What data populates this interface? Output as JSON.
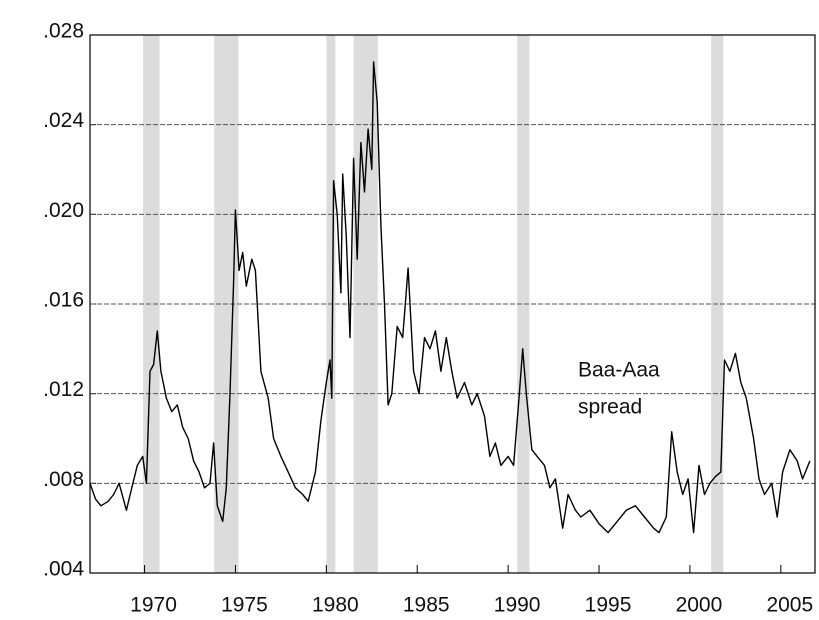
{
  "chart_data": {
    "type": "line",
    "annotation": [
      "Baa-Aaa",
      "spread"
    ],
    "color": "#000000",
    "shade_color": "#dcdcdc",
    "shaded_regions": [
      [
        1969.92,
        1970.83
      ],
      [
        1973.83,
        1975.17
      ],
      [
        1980.0,
        1980.5
      ],
      [
        1981.5,
        1982.83
      ],
      [
        1990.5,
        1991.17
      ],
      [
        2001.17,
        2001.83
      ]
    ],
    "x": [
      1967.0,
      1967.3,
      1967.6,
      1968.0,
      1968.3,
      1968.6,
      1969.0,
      1969.3,
      1969.6,
      1969.9,
      1970.1,
      1970.3,
      1970.5,
      1970.7,
      1970.9,
      1971.2,
      1971.5,
      1971.8,
      1972.1,
      1972.4,
      1972.7,
      1973.0,
      1973.3,
      1973.6,
      1973.8,
      1974.0,
      1974.3,
      1974.5,
      1974.7,
      1974.9,
      1975.0,
      1975.2,
      1975.4,
      1975.6,
      1975.9,
      1976.1,
      1976.4,
      1976.8,
      1977.1,
      1977.5,
      1977.9,
      1978.3,
      1978.7,
      1979.0,
      1979.4,
      1979.7,
      1980.0,
      1980.2,
      1980.3,
      1980.4,
      1980.6,
      1980.8,
      1980.9,
      1981.1,
      1981.3,
      1981.5,
      1981.7,
      1981.9,
      1982.1,
      1982.3,
      1982.5,
      1982.6,
      1982.8,
      1983.0,
      1983.2,
      1983.4,
      1983.6,
      1983.9,
      1984.2,
      1984.5,
      1984.8,
      1985.1,
      1985.4,
      1985.7,
      1986.0,
      1986.3,
      1986.6,
      1986.9,
      1987.2,
      1987.6,
      1988.0,
      1988.3,
      1988.7,
      1989.0,
      1989.3,
      1989.6,
      1990.0,
      1990.3,
      1990.6,
      1990.8,
      1991.0,
      1991.3,
      1991.6,
      1992.0,
      1992.3,
      1992.6,
      1993.0,
      1993.3,
      1993.7,
      1994.0,
      1994.5,
      1995.0,
      1995.5,
      1996.0,
      1996.5,
      1997.0,
      1997.5,
      1998.0,
      1998.3,
      1998.7,
      1999.0,
      1999.3,
      1999.6,
      1999.9,
      2000.2,
      2000.5,
      2000.8,
      2001.1,
      2001.4,
      2001.7,
      2001.9,
      2002.2,
      2002.5,
      2002.8,
      2003.1,
      2003.5,
      2003.8,
      2004.1,
      2004.5,
      2004.8,
      2005.1,
      2005.5,
      2005.9,
      2006.2,
      2006.6
    ],
    "values": [
      0.008,
      0.0073,
      0.007,
      0.0072,
      0.0075,
      0.008,
      0.0068,
      0.0078,
      0.0088,
      0.0092,
      0.008,
      0.013,
      0.0133,
      0.0148,
      0.013,
      0.0118,
      0.0112,
      0.0115,
      0.0105,
      0.01,
      0.009,
      0.0085,
      0.0078,
      0.008,
      0.0098,
      0.007,
      0.0063,
      0.0078,
      0.012,
      0.017,
      0.0202,
      0.0175,
      0.0183,
      0.0168,
      0.018,
      0.0175,
      0.013,
      0.0118,
      0.01,
      0.0092,
      0.0085,
      0.0078,
      0.0075,
      0.0072,
      0.0085,
      0.0108,
      0.0125,
      0.0135,
      0.0118,
      0.0215,
      0.02,
      0.0165,
      0.0218,
      0.019,
      0.0145,
      0.0225,
      0.018,
      0.0232,
      0.021,
      0.0238,
      0.022,
      0.0268,
      0.025,
      0.0195,
      0.016,
      0.0115,
      0.012,
      0.015,
      0.0145,
      0.0176,
      0.013,
      0.012,
      0.0145,
      0.014,
      0.0148,
      0.013,
      0.0145,
      0.013,
      0.0118,
      0.0125,
      0.0115,
      0.012,
      0.011,
      0.0092,
      0.0098,
      0.0088,
      0.0092,
      0.0088,
      0.0118,
      0.014,
      0.012,
      0.0095,
      0.0092,
      0.0088,
      0.0078,
      0.0082,
      0.006,
      0.0075,
      0.0068,
      0.0065,
      0.0068,
      0.0062,
      0.0058,
      0.0063,
      0.0068,
      0.007,
      0.0065,
      0.006,
      0.0058,
      0.0065,
      0.0103,
      0.0085,
      0.0075,
      0.0082,
      0.0058,
      0.0088,
      0.0075,
      0.008,
      0.0083,
      0.0085,
      0.0135,
      0.013,
      0.0138,
      0.0125,
      0.0118,
      0.01,
      0.0082,
      0.0075,
      0.008,
      0.0065,
      0.0085,
      0.0095,
      0.009,
      0.0082,
      0.009
    ],
    "xlim": [
      1967.0,
      2006.88
    ],
    "xticks": [
      1970,
      1975,
      1980,
      1985,
      1990,
      1995,
      2000,
      2005
    ],
    "ylim": [
      0.004,
      0.028
    ],
    "yticks": [
      {
        "value": 0.004,
        "label": ".004"
      },
      {
        "value": 0.008,
        "label": ".008"
      },
      {
        "value": 0.012,
        "label": ".012"
      },
      {
        "value": 0.016,
        "label": ".016"
      },
      {
        "value": 0.02,
        "label": ".020"
      },
      {
        "value": 0.024,
        "label": ".024"
      },
      {
        "value": 0.028,
        "label": ".028"
      }
    ],
    "grid": true
  }
}
